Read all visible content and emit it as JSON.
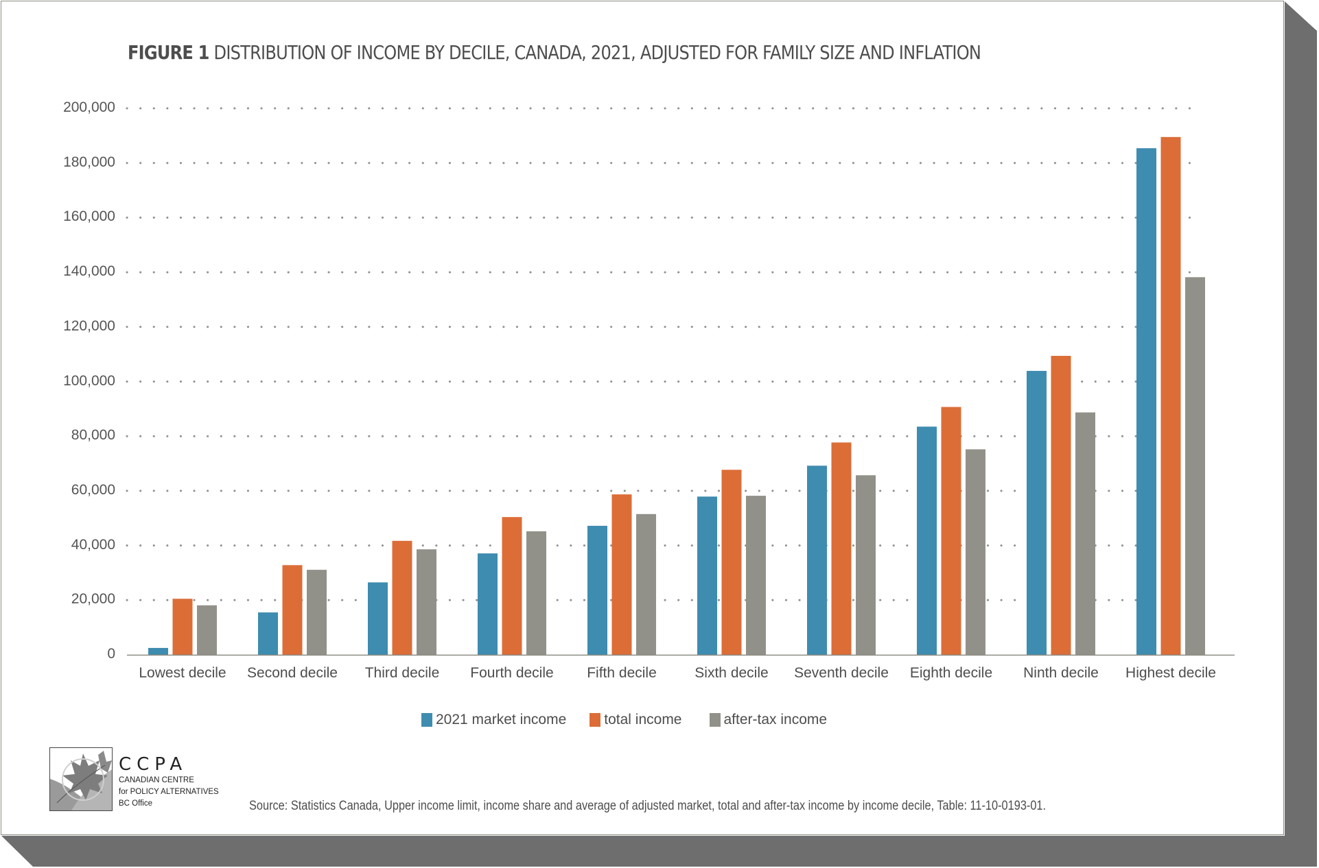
{
  "title": {
    "prefix": "FIGURE 1",
    "text": "DISTRIBUTION OF INCOME BY DECILE, CANADA, 2021, ADJUSTED FOR FAMILY SIZE AND INFLATION"
  },
  "chart_data": {
    "type": "bar",
    "title": "FIGURE 1 DISTRIBUTION OF INCOME BY DECILE, CANADA, 2021, ADJUSTED FOR FAMILY SIZE AND INFLATION",
    "xlabel": "",
    "ylabel": "",
    "ylim": [
      0,
      200000
    ],
    "yticks": [
      0,
      20000,
      40000,
      60000,
      80000,
      100000,
      120000,
      140000,
      160000,
      180000,
      200000
    ],
    "ytick_labels": [
      "0",
      "20,000",
      "40,000",
      "60,000",
      "80,000",
      "100,000",
      "120,000",
      "140,000",
      "160,000",
      "180,000",
      "200,000"
    ],
    "grid": "horizontal dotted",
    "legend_position": "bottom-center",
    "categories": [
      "Lowest decile",
      "Second decile",
      "Third decile",
      "Fourth decile",
      "Fifth decile",
      "Sixth decile",
      "Seventh decile",
      "Eighth decile",
      "Ninth decile",
      "Highest decile"
    ],
    "series": [
      {
        "name": "2021 market income",
        "color": "#3e8cb0",
        "values": [
          2500,
          15500,
          26500,
          37100,
          47200,
          57900,
          69200,
          83500,
          103900,
          185400
        ]
      },
      {
        "name": "total income",
        "color": "#dc6d37",
        "values": [
          20500,
          32800,
          41700,
          50400,
          58700,
          67700,
          77700,
          90700,
          109400,
          189500
        ]
      },
      {
        "name": "after-tax income",
        "color": "#929189",
        "values": [
          18100,
          31100,
          38600,
          45200,
          51500,
          58200,
          65700,
          75200,
          88700,
          138200
        ]
      }
    ]
  },
  "logo": {
    "acronym": "CCPA",
    "line1": "CANADIAN CENTRE",
    "line2": "for POLICY ALTERNATIVES",
    "line3": "BC Office"
  },
  "source": "Source: Statistics Canada, Upper income limit, income share and average of adjusted market, total and after-tax income by income decile, Table: 11-10-0193-01."
}
